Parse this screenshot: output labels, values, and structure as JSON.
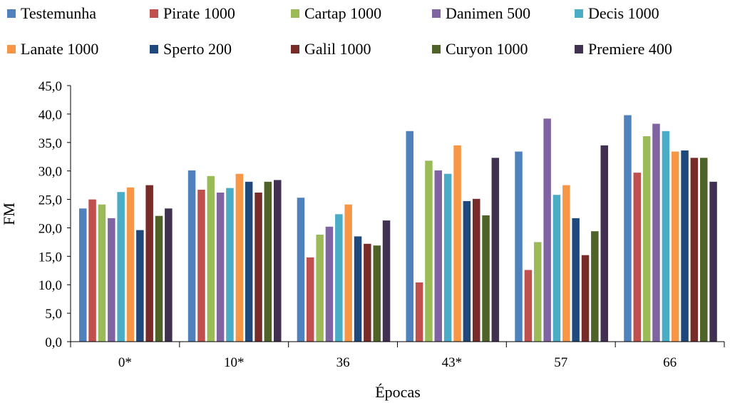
{
  "chart_data": {
    "type": "bar",
    "xlabel": "Épocas",
    "ylabel": "FM",
    "ylim": [
      0,
      45
    ],
    "yticks": [
      "0,0",
      "5,0",
      "10,0",
      "15,0",
      "20,0",
      "25,0",
      "30,0",
      "35,0",
      "40,0",
      "45,0"
    ],
    "grid": false,
    "legend_position": "top",
    "categories": [
      "0*",
      "10*",
      "36",
      "43*",
      "57",
      "66"
    ],
    "series": [
      {
        "name": "Testemunha",
        "color": "#4F81BD",
        "values": [
          23.4,
          30.1,
          25.3,
          37.0,
          33.4,
          39.8
        ]
      },
      {
        "name": "Pirate 1000",
        "color": "#C0504D",
        "values": [
          25.0,
          26.7,
          14.8,
          10.4,
          12.6,
          29.7
        ]
      },
      {
        "name": "Cartap 1000",
        "color": "#9BBB59",
        "values": [
          24.1,
          29.1,
          18.8,
          31.8,
          17.5,
          36.1
        ]
      },
      {
        "name": "Danimen 500",
        "color": "#8064A2",
        "values": [
          21.7,
          26.2,
          20.2,
          30.1,
          39.2,
          38.3
        ]
      },
      {
        "name": "Decis 1000",
        "color": "#4BACC6",
        "values": [
          26.3,
          27.0,
          22.4,
          29.5,
          25.8,
          37.0
        ]
      },
      {
        "name": "Lanate 1000",
        "color": "#F79646",
        "values": [
          27.1,
          29.5,
          24.1,
          34.5,
          27.5,
          33.4
        ]
      },
      {
        "name": "Sperto 200",
        "color": "#1F497D",
        "values": [
          19.6,
          28.1,
          18.5,
          24.7,
          21.7,
          33.6
        ]
      },
      {
        "name": "Galil 1000",
        "color": "#772C2A",
        "values": [
          27.5,
          26.2,
          17.2,
          25.1,
          15.2,
          32.3
        ]
      },
      {
        "name": "Curyon 1000",
        "color": "#4F6228",
        "values": [
          22.1,
          28.1,
          16.9,
          22.2,
          19.4,
          32.3
        ]
      },
      {
        "name": "Premiere 400",
        "color": "#403151",
        "values": [
          23.4,
          28.4,
          21.3,
          32.3,
          34.5,
          28.1
        ]
      }
    ]
  }
}
